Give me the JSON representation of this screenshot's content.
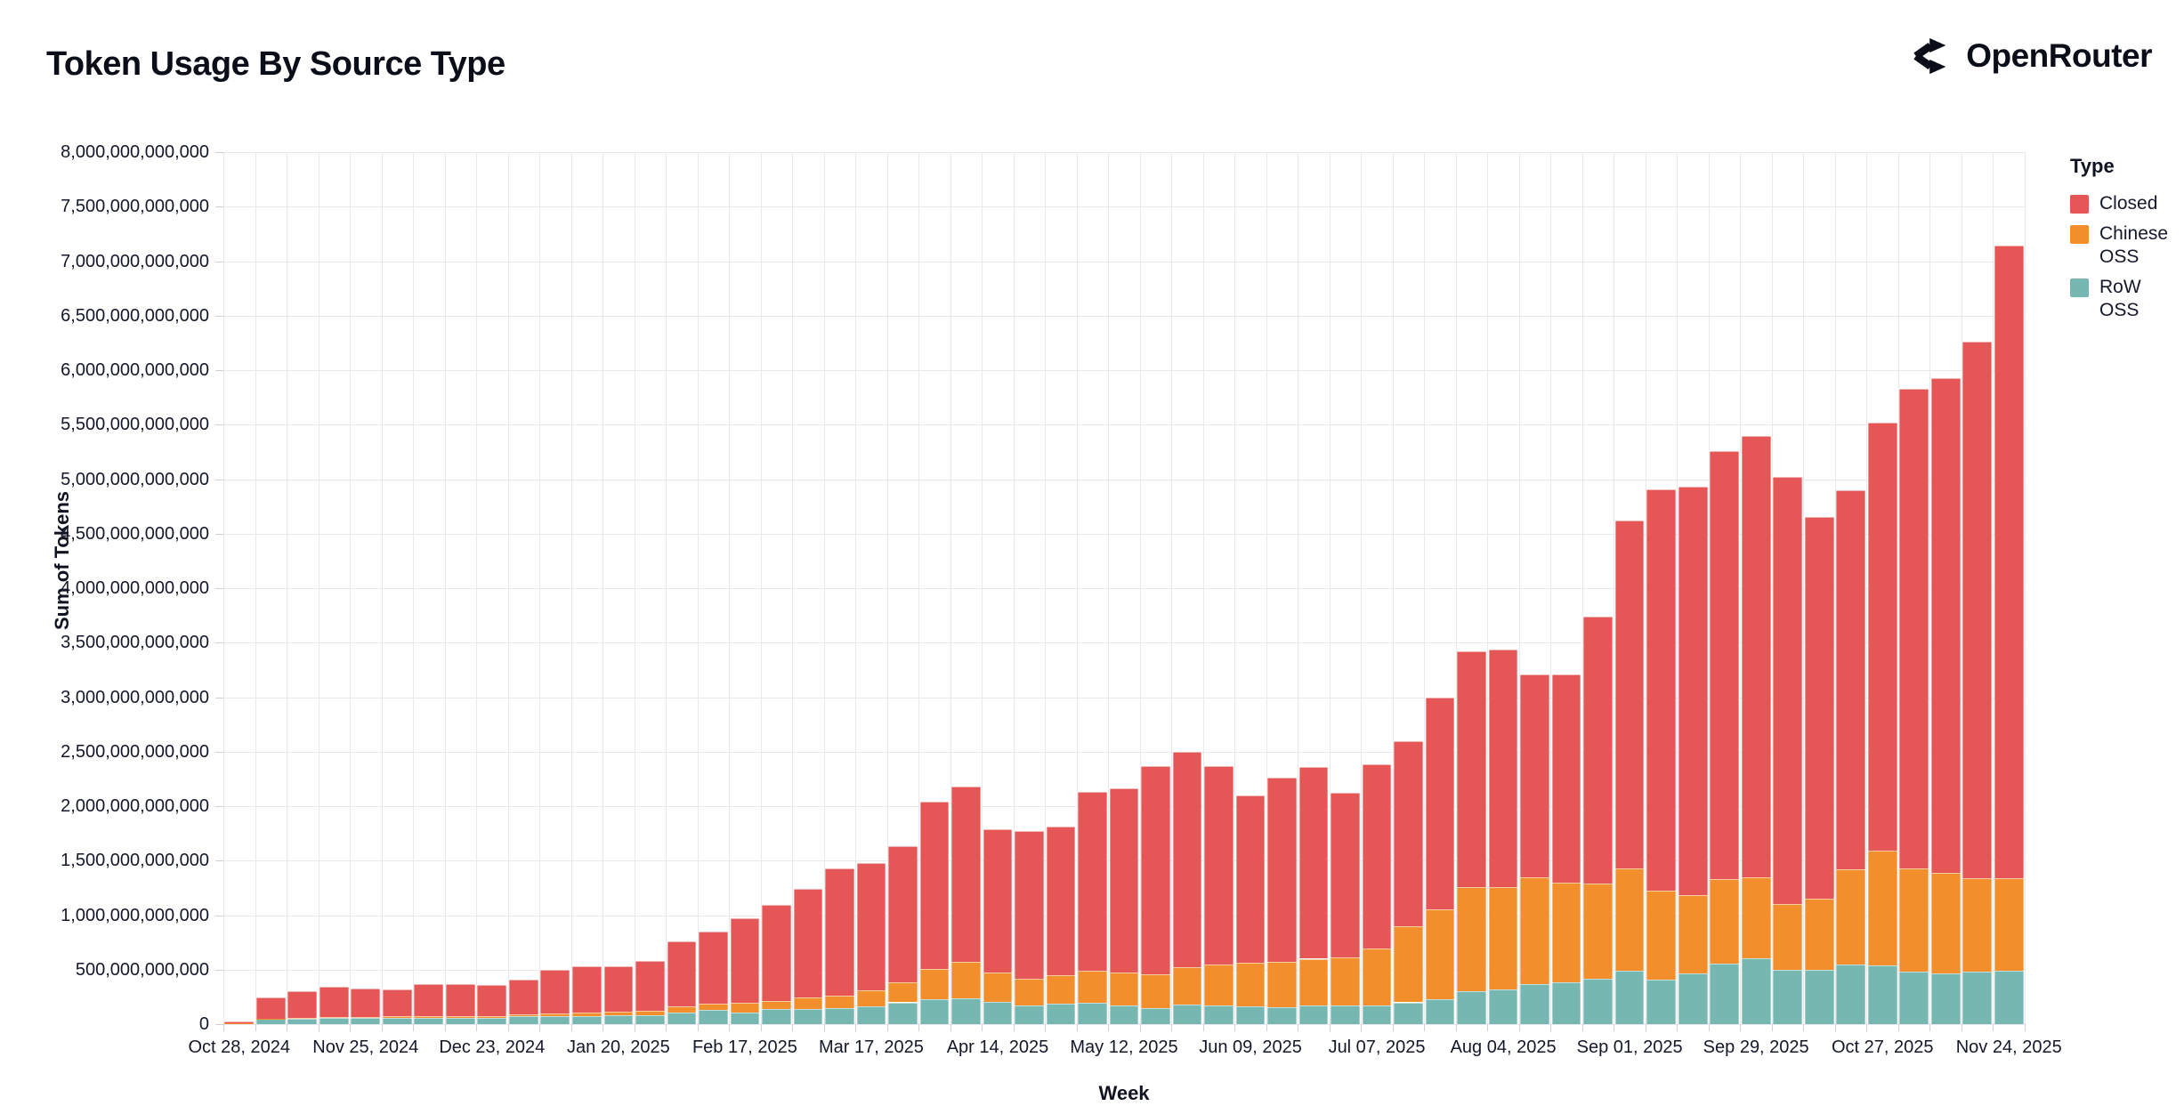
{
  "header": {
    "title": "Token Usage By Source Type",
    "logo_text": "OpenRouter"
  },
  "colors": {
    "closed": "#e45756",
    "chinese_oss": "#f28e2b",
    "row_oss": "#76b7b2",
    "grid": "#e8e8ef",
    "tick": "#cfcfda",
    "text": "#15182b",
    "title_text": "#0b0d19",
    "background": "#ffffff"
  },
  "chart_data": {
    "type": "bar",
    "stacked": true,
    "title": "Token Usage By Source Type",
    "xlabel": "Week",
    "ylabel": "Sum of Tokens",
    "values_unit": "billions_of_tokens",
    "ylim_billions": [
      0,
      8000
    ],
    "ytick_interval_billions": 500,
    "grid": true,
    "ytick_labels": [
      "0",
      "500,000,000,000",
      "1,000,000,000,000",
      "1,500,000,000,000",
      "2,000,000,000,000",
      "2,500,000,000,000",
      "3,000,000,000,000",
      "3,500,000,000,000",
      "4,000,000,000,000",
      "4,500,000,000,000",
      "5,000,000,000,000",
      "5,500,000,000,000",
      "6,000,000,000,000",
      "6,500,000,000,000",
      "7,000,000,000,000",
      "7,500,000,000,000",
      "8,000,000,000,000"
    ],
    "x_label_every_n": 4,
    "visible_x_labels": [
      "Oct 28, 2024",
      "Nov 25, 2024",
      "Dec 23, 2024",
      "Jan 20, 2025",
      "Feb 17, 2025",
      "Mar 17, 2025",
      "Apr 14, 2025",
      "May 12, 2025",
      "Jun 09, 2025",
      "Jul 07, 2025",
      "Aug 04, 2025",
      "Sep 01, 2025",
      "Sep 29, 2025",
      "Oct 27, 2025",
      "Nov 24, 2025"
    ],
    "categories": [
      "Oct 28, 2024",
      "Nov 04, 2024",
      "Nov 11, 2024",
      "Nov 18, 2024",
      "Nov 25, 2024",
      "Dec 02, 2024",
      "Dec 09, 2024",
      "Dec 16, 2024",
      "Dec 23, 2024",
      "Dec 30, 2024",
      "Jan 06, 2025",
      "Jan 13, 2025",
      "Jan 20, 2025",
      "Jan 27, 2025",
      "Feb 03, 2025",
      "Feb 10, 2025",
      "Feb 17, 2025",
      "Feb 24, 2025",
      "Mar 03, 2025",
      "Mar 10, 2025",
      "Mar 17, 2025",
      "Mar 24, 2025",
      "Mar 31, 2025",
      "Apr 07, 2025",
      "Apr 14, 2025",
      "Apr 21, 2025",
      "Apr 28, 2025",
      "May 05, 2025",
      "May 12, 2025",
      "May 19, 2025",
      "May 26, 2025",
      "Jun 02, 2025",
      "Jun 09, 2025",
      "Jun 16, 2025",
      "Jun 23, 2025",
      "Jun 30, 2025",
      "Jul 07, 2025",
      "Jul 14, 2025",
      "Jul 21, 2025",
      "Jul 28, 2025",
      "Aug 04, 2025",
      "Aug 11, 2025",
      "Aug 18, 2025",
      "Aug 25, 2025",
      "Sep 01, 2025",
      "Sep 08, 2025",
      "Sep 15, 2025",
      "Sep 22, 2025",
      "Sep 29, 2025",
      "Oct 06, 2025",
      "Oct 13, 2025",
      "Oct 20, 2025",
      "Oct 27, 2025",
      "Nov 03, 2025",
      "Nov 10, 2025",
      "Nov 17, 2025",
      "Nov 24, 2025"
    ],
    "series": [
      {
        "name": "RoW OSS",
        "color": "#76b7b2",
        "values": [
          8,
          45,
          50,
          55,
          55,
          60,
          60,
          60,
          60,
          70,
          75,
          75,
          80,
          85,
          110,
          130,
          110,
          135,
          140,
          150,
          165,
          200,
          225,
          240,
          205,
          170,
          190,
          195,
          170,
          150,
          180,
          170,
          160,
          155,
          170,
          170,
          170,
          200,
          225,
          300,
          315,
          365,
          385,
          420,
          490,
          405,
          465,
          555,
          605,
          495,
          495,
          545,
          535,
          480,
          465,
          485,
          490
        ]
      },
      {
        "name": "Chinese OSS",
        "color": "#f28e2b",
        "values": [
          3,
          6,
          10,
          10,
          10,
          12,
          12,
          14,
          15,
          18,
          25,
          30,
          35,
          40,
          55,
          60,
          85,
          80,
          105,
          110,
          145,
          180,
          285,
          330,
          270,
          245,
          255,
          295,
          300,
          305,
          345,
          380,
          400,
          420,
          430,
          445,
          520,
          695,
          825,
          955,
          945,
          985,
          915,
          870,
          940,
          820,
          720,
          775,
          740,
          610,
          655,
          875,
          1055,
          945,
          920,
          850,
          845
        ]
      },
      {
        "name": "Closed",
        "color": "#e45756",
        "values": [
          15,
          195,
          240,
          275,
          265,
          243,
          298,
          296,
          285,
          322,
          400,
          425,
          415,
          455,
          595,
          660,
          775,
          880,
          995,
          1170,
          1170,
          1250,
          1530,
          1610,
          1315,
          1355,
          1365,
          1640,
          1690,
          1915,
          1975,
          1820,
          1540,
          1685,
          1760,
          1505,
          1690,
          1705,
          1950,
          2165,
          2180,
          1860,
          1910,
          2450,
          3190,
          3685,
          3745,
          3930,
          4055,
          3915,
          3500,
          3480,
          3930,
          4405,
          4545,
          4925,
          5805
        ]
      }
    ],
    "legend": {
      "title": "Type",
      "position": "right",
      "order": [
        "Closed",
        "Chinese OSS",
        "RoW OSS"
      ]
    }
  }
}
